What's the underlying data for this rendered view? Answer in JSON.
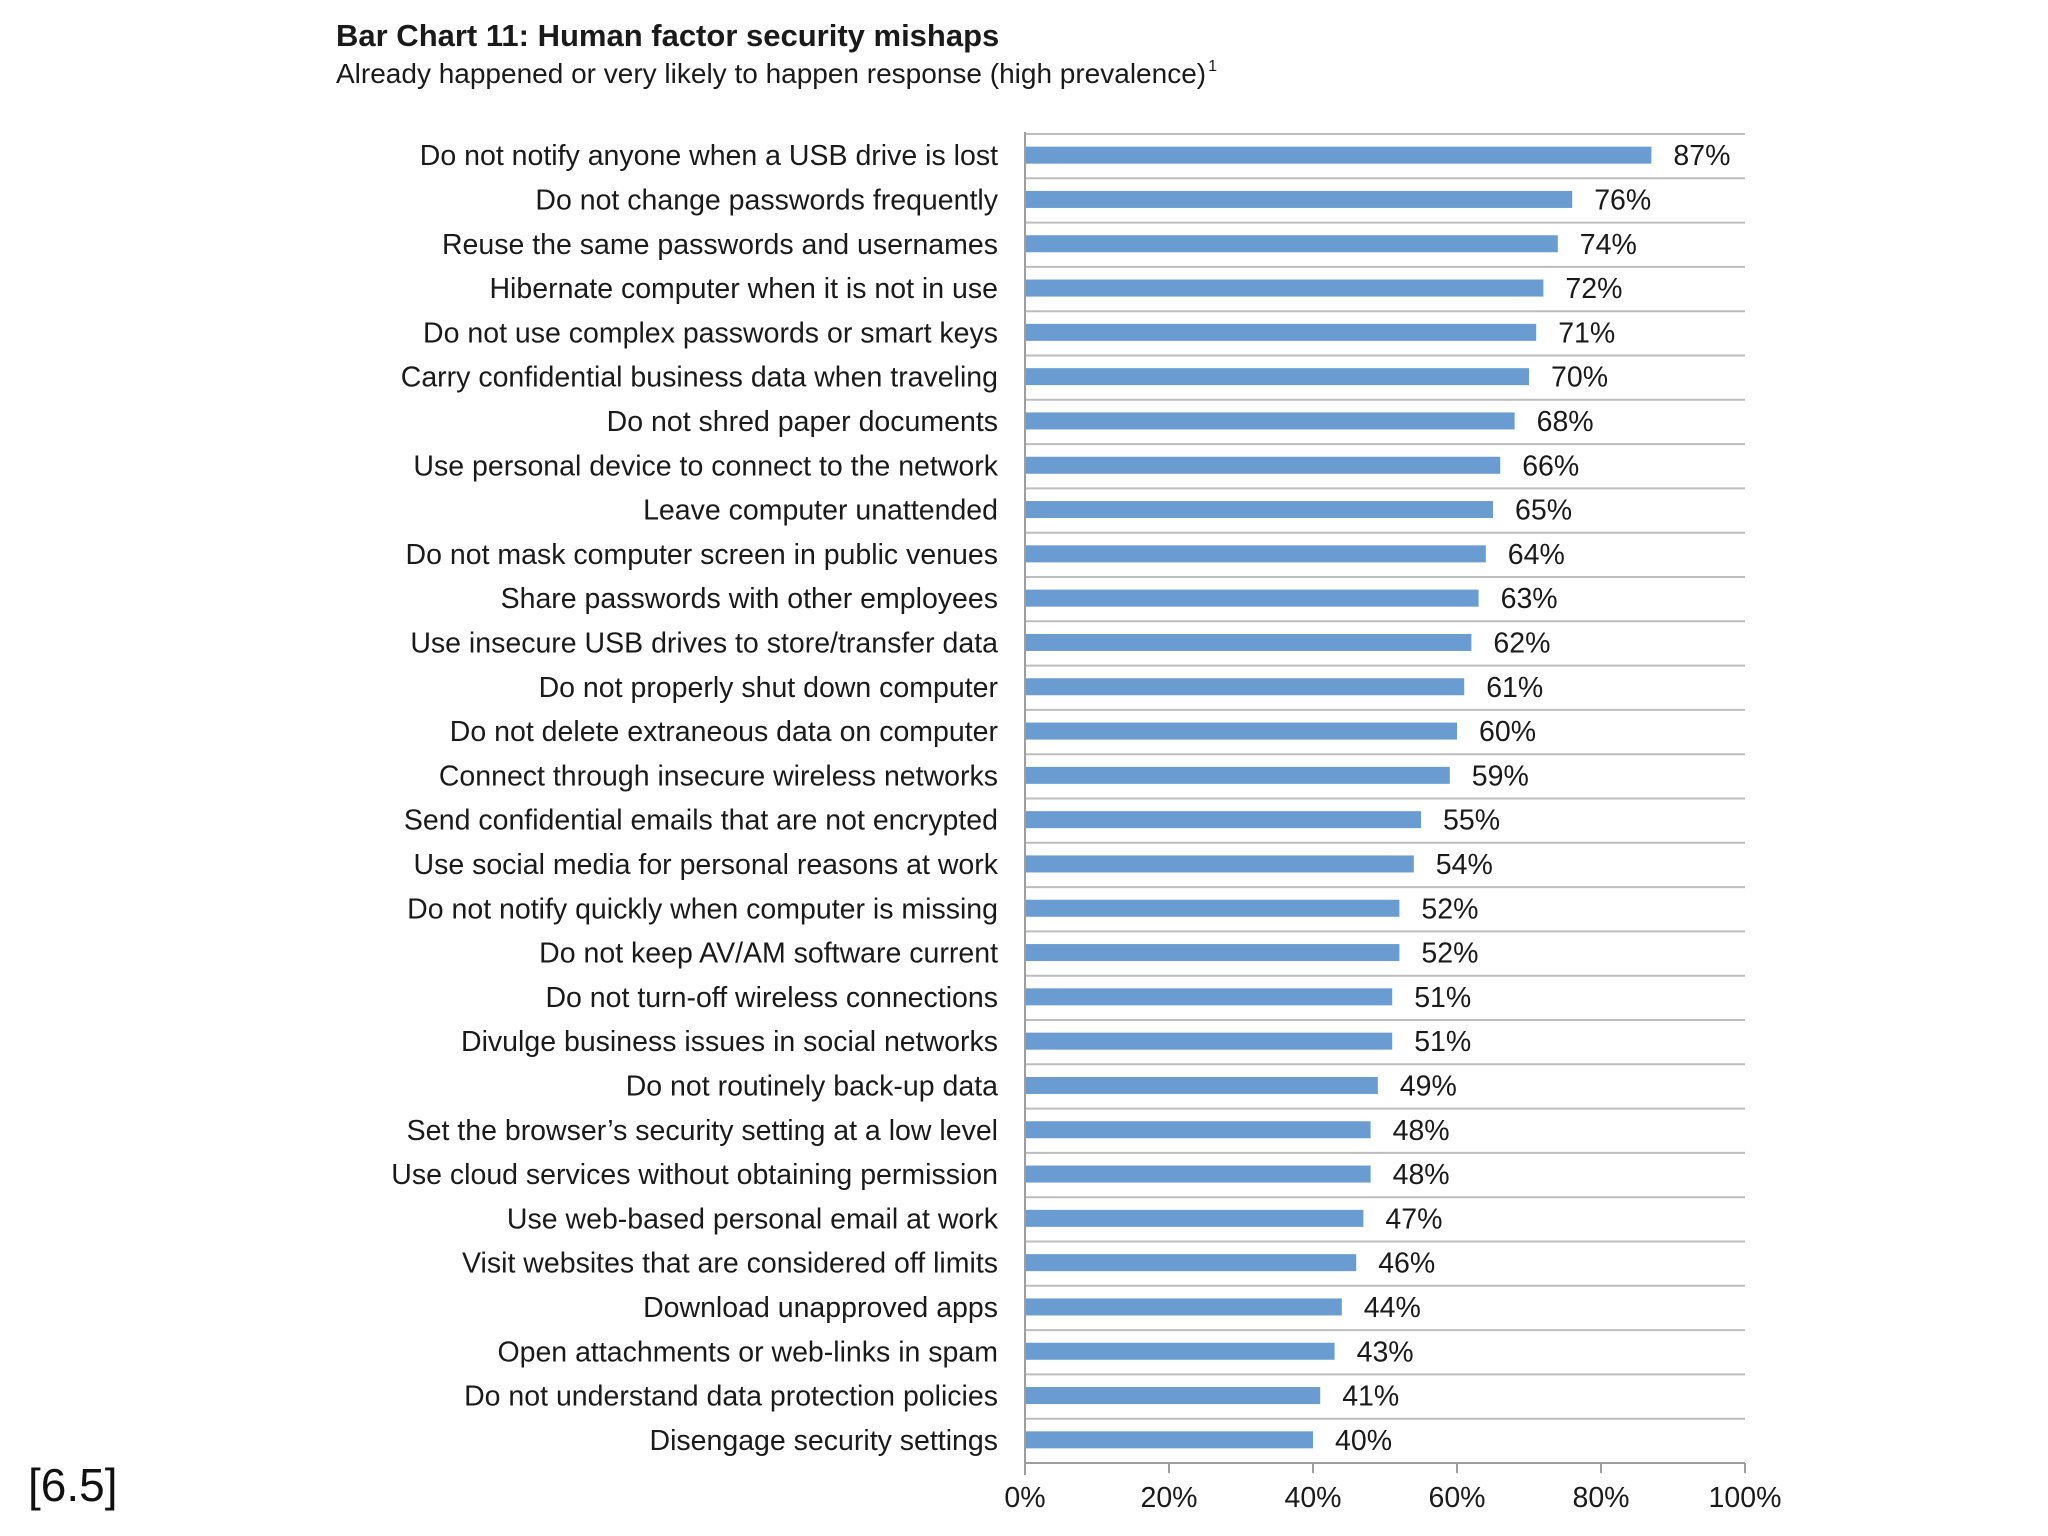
{
  "chart_data": {
    "type": "bar",
    "orientation": "horizontal",
    "title": "Bar Chart 11: Human factor security mishaps",
    "subtitle": "Already happened or very likely to happen response (high prevalence)",
    "subtitle_footnote": "1",
    "xlim": [
      0,
      100
    ],
    "x_ticks": [
      "0%",
      "20%",
      "40%",
      "60%",
      "80%",
      "100%"
    ],
    "bar_color": "#6a9bd1",
    "grid": "horizontal separators between rows",
    "categories": [
      "Do not notify anyone when a USB drive is lost",
      "Do not change passwords frequently",
      "Reuse the same passwords and usernames",
      "Hibernate computer when it is not in use",
      "Do not use complex passwords or smart keys",
      "Carry confidential business data when traveling",
      "Do not shred paper documents",
      "Use personal device to connect to the network",
      "Leave computer unattended",
      "Do not mask computer screen in public venues",
      "Share passwords with other employees",
      "Use insecure USB drives to store/transfer data",
      "Do not properly shut down computer",
      "Do not delete extraneous data on computer",
      "Connect through insecure wireless networks",
      "Send confidential emails that are not encrypted",
      "Use social media for personal reasons at work",
      "Do not notify quickly when computer is missing",
      "Do not keep AV/AM software current",
      "Do not turn-off wireless connections",
      "Divulge business issues in social networks",
      "Do not routinely back-up data",
      "Set the browser’s security setting at a low level",
      "Use cloud services without obtaining permission",
      "Use web-based personal email at work",
      "Visit websites that are considered off limits",
      "Download unapproved apps",
      "Open attachments or web-links in spam",
      "Do not understand data protection policies",
      "Disengage security settings"
    ],
    "values": [
      87,
      76,
      74,
      72,
      71,
      70,
      68,
      66,
      65,
      64,
      63,
      62,
      61,
      60,
      59,
      55,
      54,
      52,
      52,
      51,
      51,
      49,
      48,
      48,
      47,
      46,
      44,
      43,
      41,
      40
    ],
    "data_labels": [
      "87%",
      "76%",
      "74%",
      "72%",
      "71%",
      "70%",
      "68%",
      "66%",
      "65%",
      "64%",
      "63%",
      "62%",
      "61%",
      "60%",
      "59%",
      "55%",
      "54%",
      "52%",
      "52%",
      "51%",
      "51%",
      "49%",
      "48%",
      "48%",
      "47%",
      "46%",
      "44%",
      "43%",
      "41%",
      "40%"
    ]
  },
  "slide": {
    "reference": "[6.5]"
  }
}
